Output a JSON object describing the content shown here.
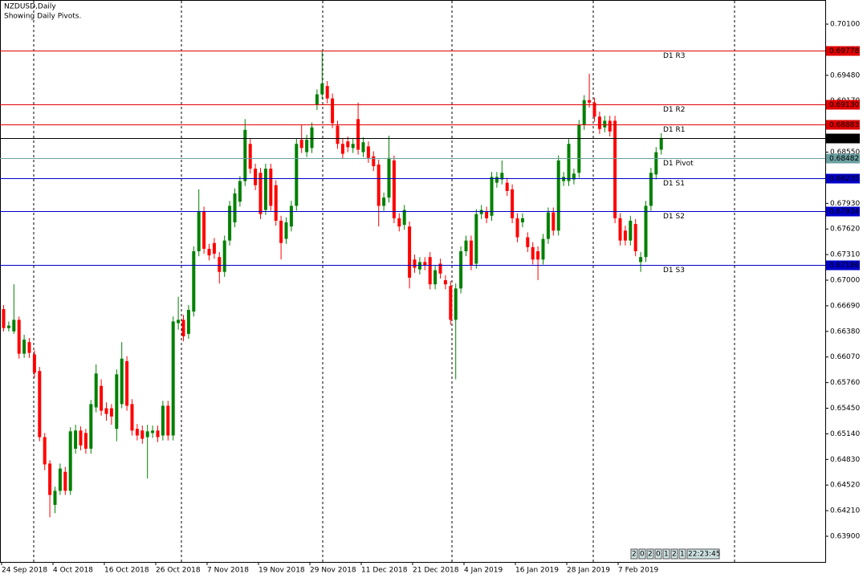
{
  "chart_data": {
    "type": "candlestick",
    "title": "NZDUSD,Daily",
    "subtitle": "Showing Daily Pivots.",
    "categories": [
      "24 Sep 2018",
      null,
      null,
      null,
      null,
      null,
      null,
      null,
      null,
      null,
      "4 Oct 2018",
      null,
      null,
      null,
      null,
      null,
      null,
      null,
      null,
      null,
      "16 Oct 2018",
      null,
      null,
      null,
      null,
      null,
      null,
      null,
      null,
      null,
      "26 Oct 2018",
      null,
      null,
      null,
      null,
      null,
      null,
      null,
      null,
      null,
      "7 Nov 2018",
      null,
      null,
      null,
      null,
      null,
      null,
      null,
      null,
      null,
      "19 Nov 2018",
      null,
      null,
      null,
      null,
      null,
      null,
      null,
      null,
      null,
      "29 Nov 2018",
      null,
      null,
      null,
      null,
      null,
      null,
      null,
      null,
      null,
      "11 Dec 2018",
      null,
      null,
      null,
      null,
      null,
      null,
      null,
      null,
      null,
      "21 Dec 2018",
      null,
      null,
      null,
      null,
      null,
      null,
      null,
      null,
      null,
      "4 Jan 2019",
      null,
      null,
      null,
      null,
      null,
      null,
      null,
      null,
      null,
      "16 Jan 2019",
      null,
      null,
      null,
      null,
      null,
      null,
      null,
      null,
      null,
      "28 Jan 2019",
      null,
      null,
      null,
      null,
      null,
      null,
      null,
      null,
      null,
      "7 Feb 2019",
      null,
      null,
      null,
      null,
      null,
      null,
      null,
      null
    ],
    "open": [
      0.6665,
      0.6642,
      0.6638,
      0.6652,
      0.6611,
      0.6625,
      0.661,
      0.659,
      0.651,
      0.6478,
      0.6428,
      0.6445,
      0.6468,
      0.6445,
      0.6496,
      0.6518,
      0.6515,
      0.6496,
      0.6546,
      0.6572,
      0.6545,
      0.6545,
      0.652,
      0.655,
      0.6602,
      0.655,
      0.652,
      0.6518,
      0.651,
      0.6515,
      0.6518,
      0.6512,
      0.6548,
      0.6512,
      0.6648,
      0.6652,
      0.6635,
      0.6662,
      0.6735,
      0.6783,
      0.6738,
      0.6745,
      0.6728,
      0.671,
      0.6748,
      0.677,
      0.6795,
      0.682,
      0.6865,
      0.6835,
      0.683,
      0.6785,
      0.6835,
      0.6815,
      0.6772,
      0.675,
      0.6765,
      0.679,
      0.687,
      0.6855,
      0.686,
      0.6912,
      0.6925,
      0.6935,
      0.692,
      0.6887,
      0.6865,
      0.6868,
      0.686,
      0.6895,
      0.6855,
      0.6862,
      0.685,
      0.684,
      0.679,
      0.68,
      0.6845,
      0.6775,
      0.6767,
      0.6765,
      0.6725,
      0.6713,
      0.6722,
      0.6728,
      0.6695,
      0.672,
      0.67,
      0.6693,
      0.6652,
      0.669,
      0.6735,
      0.6748,
      0.672,
      0.678,
      0.6783,
      0.6778,
      0.6818,
      0.6822,
      0.6818,
      0.681,
      0.6775,
      0.677,
      0.6752,
      0.674,
      0.6735,
      0.6725,
      0.675,
      0.6782,
      0.676,
      0.682,
      0.682,
      0.6822,
      0.683,
      0.6888,
      0.6918,
      0.6915,
      0.6898,
      0.6885,
      0.6893,
      0.6893,
      0.6775,
      0.676,
      0.6748,
      0.6768,
      0.6722,
      0.6728,
      0.679,
      0.6828,
      0.6858
    ],
    "high": [
      0.667,
      0.665,
      0.6695,
      0.6656,
      0.6634,
      0.663,
      0.6615,
      0.6595,
      0.6515,
      0.6482,
      0.645,
      0.6478,
      0.6474,
      0.6522,
      0.6525,
      0.6523,
      0.652,
      0.6555,
      0.6598,
      0.658,
      0.6552,
      0.655,
      0.6592,
      0.6625,
      0.6608,
      0.6556,
      0.6526,
      0.6524,
      0.6525,
      0.6524,
      0.6524,
      0.6554,
      0.6554,
      0.6656,
      0.668,
      0.6658,
      0.667,
      0.6741,
      0.681,
      0.6789,
      0.6744,
      0.6751,
      0.6734,
      0.6754,
      0.6796,
      0.6811,
      0.6826,
      0.6895,
      0.6871,
      0.6841,
      0.6836,
      0.6841,
      0.6841,
      0.6821,
      0.6778,
      0.6776,
      0.6796,
      0.6871,
      0.6888,
      0.6876,
      0.6891,
      0.6931,
      0.6978,
      0.6941,
      0.6926,
      0.6893,
      0.6871,
      0.6874,
      0.6871,
      0.6915,
      0.6873,
      0.6868,
      0.6856,
      0.6846,
      0.6806,
      0.6875,
      0.6851,
      0.6781,
      0.6791,
      0.6771,
      0.6731,
      0.6728,
      0.6728,
      0.6734,
      0.6718,
      0.6726,
      0.6706,
      0.6699,
      0.6696,
      0.6741,
      0.6754,
      0.6754,
      0.6786,
      0.6791,
      0.6789,
      0.6831,
      0.6831,
      0.6845,
      0.6824,
      0.6816,
      0.6781,
      0.6781,
      0.6758,
      0.6746,
      0.6741,
      0.6756,
      0.6788,
      0.6788,
      0.6851,
      0.6831,
      0.6871,
      0.6835,
      0.6894,
      0.6924,
      0.695,
      0.6921,
      0.6904,
      0.6899,
      0.6899,
      0.6899,
      0.6781,
      0.6766,
      0.6778,
      0.6774,
      0.6734,
      0.6796,
      0.6836,
      0.6861,
      0.6878
    ],
    "low": [
      0.6638,
      0.6638,
      0.6635,
      0.6605,
      0.6606,
      0.6606,
      0.6582,
      0.6505,
      0.647,
      0.6413,
      0.6418,
      0.644,
      0.644,
      0.644,
      0.649,
      0.6494,
      0.649,
      0.649,
      0.654,
      0.6536,
      0.653,
      0.6525,
      0.6505,
      0.6545,
      0.6542,
      0.6512,
      0.6506,
      0.6502,
      0.646,
      0.6509,
      0.6504,
      0.6506,
      0.6506,
      0.6506,
      0.664,
      0.6626,
      0.6629,
      0.6656,
      0.6729,
      0.6732,
      0.6724,
      0.6726,
      0.6696,
      0.6704,
      0.6742,
      0.6764,
      0.6789,
      0.6814,
      0.6829,
      0.6809,
      0.6774,
      0.6779,
      0.6784,
      0.6766,
      0.6725,
      0.6744,
      0.6759,
      0.6784,
      0.6854,
      0.6849,
      0.6854,
      0.6906,
      0.6919,
      0.6914,
      0.6884,
      0.6859,
      0.6847,
      0.6855,
      0.6854,
      0.6852,
      0.6849,
      0.6842,
      0.6832,
      0.6765,
      0.6784,
      0.6794,
      0.6769,
      0.6759,
      0.6761,
      0.669,
      0.6709,
      0.6707,
      0.6712,
      0.6689,
      0.6689,
      0.6702,
      0.6689,
      0.6646,
      0.658,
      0.6684,
      0.6729,
      0.6712,
      0.6714,
      0.6774,
      0.6769,
      0.6772,
      0.6812,
      0.6816,
      0.6802,
      0.6769,
      0.6746,
      0.6764,
      0.6734,
      0.6719,
      0.67,
      0.6719,
      0.6744,
      0.6754,
      0.6754,
      0.6814,
      0.6814,
      0.6816,
      0.6824,
      0.6882,
      0.6909,
      0.6892,
      0.6877,
      0.6879,
      0.6874,
      0.6769,
      0.6742,
      0.6742,
      0.6742,
      0.6729,
      0.671,
      0.6722,
      0.6784,
      0.6822,
      0.6852
    ],
    "close": [
      0.6642,
      0.6645,
      0.6652,
      0.6611,
      0.6628,
      0.6612,
      0.6588,
      0.651,
      0.6477,
      0.644,
      0.6445,
      0.6472,
      0.6445,
      0.6517,
      0.6518,
      0.65,
      0.6496,
      0.655,
      0.6587,
      0.6542,
      0.6538,
      0.6535,
      0.6586,
      0.6605,
      0.6548,
      0.6518,
      0.6512,
      0.6508,
      0.6517,
      0.6518,
      0.651,
      0.6548,
      0.6512,
      0.665,
      0.6652,
      0.6632,
      0.6664,
      0.6735,
      0.6783,
      0.6738,
      0.673,
      0.6732,
      0.671,
      0.6748,
      0.679,
      0.6805,
      0.682,
      0.6882,
      0.6835,
      0.6815,
      0.678,
      0.6835,
      0.679,
      0.6772,
      0.6745,
      0.677,
      0.679,
      0.6865,
      0.686,
      0.687,
      0.6885,
      0.6925,
      0.6938,
      0.692,
      0.689,
      0.6865,
      0.6853,
      0.6861,
      0.6865,
      0.6858,
      0.6867,
      0.6848,
      0.6838,
      0.679,
      0.68,
      0.6848,
      0.6775,
      0.6765,
      0.6785,
      0.6703,
      0.6715,
      0.6722,
      0.6718,
      0.6695,
      0.6712,
      0.6708,
      0.6695,
      0.6652,
      0.669,
      0.6735,
      0.6748,
      0.6718,
      0.678,
      0.6785,
      0.6775,
      0.6825,
      0.6825,
      0.683,
      0.6808,
      0.6775,
      0.6752,
      0.6775,
      0.674,
      0.6725,
      0.6725,
      0.675,
      0.6782,
      0.676,
      0.6845,
      0.6825,
      0.6865,
      0.6829,
      0.6888,
      0.6918,
      0.6915,
      0.6898,
      0.6883,
      0.6893,
      0.688,
      0.6775,
      0.6748,
      0.6748,
      0.6772,
      0.6735,
      0.6728,
      0.679,
      0.683,
      0.6855,
      0.6872
    ],
    "up_color": "#008000",
    "down_color": "#ff0000",
    "ylim": [
      0.63589,
      0.70392
    ],
    "yticks": [
      {
        "value": 0.639,
        "label": "0.63900"
      },
      {
        "value": 0.6421,
        "label": "0.64210"
      },
      {
        "value": 0.6452,
        "label": "0.64520"
      },
      {
        "value": 0.6483,
        "label": "0.64830"
      },
      {
        "value": 0.6514,
        "label": "0.65140"
      },
      {
        "value": 0.6545,
        "label": "0.65450"
      },
      {
        "value": 0.6576,
        "label": "0.65760"
      },
      {
        "value": 0.6607,
        "label": "0.66070"
      },
      {
        "value": 0.6638,
        "label": "0.66380"
      },
      {
        "value": 0.6669,
        "label": "0.66690"
      },
      {
        "value": 0.67,
        "label": "0.67000"
      },
      {
        "value": 0.6731,
        "label": "0.67310"
      },
      {
        "value": 0.6762,
        "label": "0.67620"
      },
      {
        "value": 0.6793,
        "label": "0.67930"
      },
      {
        "value": 0.6824,
        "label": "0.68240"
      },
      {
        "value": 0.6855,
        "label": "0.68550"
      },
      {
        "value": 0.6886,
        "label": "0.68860"
      },
      {
        "value": 0.6917,
        "label": "0.69170"
      },
      {
        "value": 0.6948,
        "label": "0.69480"
      },
      {
        "value": 0.6979,
        "label": "0.69790"
      },
      {
        "value": 0.701,
        "label": "0.70100"
      }
    ],
    "levels": [
      {
        "name": "D1 R3",
        "value": 0.69778,
        "value_label": "0.69778",
        "color": "#e00000"
      },
      {
        "name": "D1 R2",
        "value": 0.6913,
        "value_label": "0.69130",
        "color": "#e00000"
      },
      {
        "name": "D1 R1",
        "value": 0.68883,
        "value_label": "0.68883",
        "color": "#e00000"
      },
      {
        "name": "D1 Pivot",
        "value": 0.68482,
        "value_label": "0.68482",
        "color": "#6a9fa0"
      },
      {
        "name": "D1 S1",
        "value": 0.68235,
        "value_label": "0.68235",
        "color": "#0000c8"
      },
      {
        "name": "D1 S2",
        "value": 0.67834,
        "value_label": "0.67834",
        "color": "#0000c8"
      },
      {
        "name": "D1 S3",
        "value": 0.67186,
        "value_label": "0.67186",
        "color": "#0000c8"
      }
    ],
    "current_price": {
      "value": 0.6872,
      "label": "0.68720",
      "color": "#000000"
    },
    "timer_cells": [
      "2",
      "0",
      "2",
      "0",
      "1",
      "2",
      "1",
      "22:23:45"
    ]
  }
}
